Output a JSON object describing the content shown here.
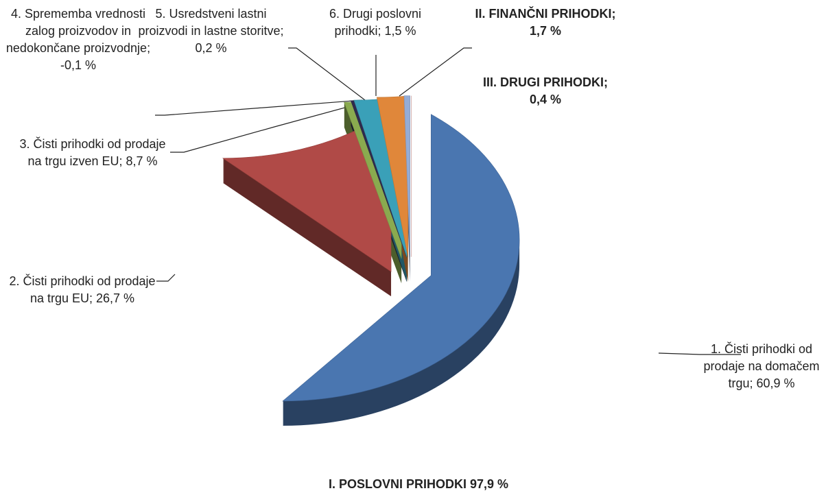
{
  "chart_data": {
    "type": "pie",
    "categories": [
      "1. Čisti prihodki od prodaje na domačem trgu",
      "2. Čisti prihodki od prodaje na trgu EU",
      "3. Čisti prihodki od prodaje na trgu izven EU",
      "4. Sprememba vrednosti zalog proizvodov in nedokončane proizvodnje",
      "5. Usredstveni lastni proizvodi in lastne storitve",
      "6. Drugi poslovni prihodki",
      "II. FINANČNI PRIHODKI",
      "III. DRUGI PRIHODKI"
    ],
    "values": [
      60.9,
      26.7,
      8.7,
      -0.1,
      0.2,
      1.5,
      1.7,
      0.4
    ],
    "value_labels": [
      "60,9 %",
      "26,7 %",
      "8,7 %",
      "-0,1 %",
      "0,2 %",
      "1,5 %",
      "1,7 %",
      "0,4 %"
    ],
    "label_separator": "; ",
    "colors": [
      "#4a76b0",
      "#b04a47",
      "#8aaa4f",
      "#2f2a4d",
      "#3aa0b8",
      "#e0873a",
      "#94acd6",
      "#d99594"
    ],
    "annotation": "I. POSLOVNI PRIHODKI 97,9 %"
  }
}
